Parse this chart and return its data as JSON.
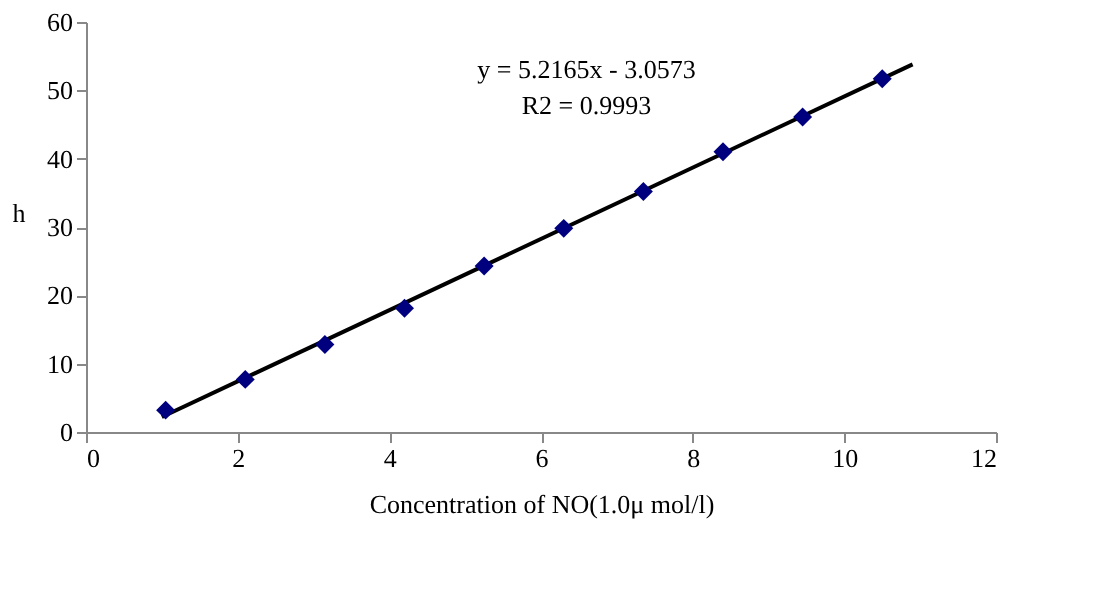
{
  "chart_data": {
    "type": "scatter",
    "xlabel": "Concentration of NO(1.0μ mol/l)",
    "ylabel": "h",
    "xlim": [
      0,
      12
    ],
    "xticks": [
      0,
      2,
      4,
      6,
      8,
      10,
      12
    ],
    "ylim": [
      0,
      60
    ],
    "yticks": [
      0,
      10,
      20,
      30,
      40,
      50,
      60
    ],
    "grid": false,
    "marker": "diamond",
    "annotations": [
      "y = 5.2165x - 3.0573",
      "R2 = 0.9993"
    ],
    "series": [
      {
        "type": "line",
        "color": "#000000",
        "x": [
          1.0,
          10.9
        ],
        "values": [
          2.2,
          53.8
        ],
        "marker": "none",
        "line_style": "solid"
      },
      {
        "color": "#00007f",
        "x": [
          1.05,
          2.1,
          3.15,
          4.2,
          5.25,
          6.3,
          7.35,
          8.4,
          9.45,
          10.5
        ],
        "values": [
          3.2,
          7.7,
          12.8,
          18.1,
          24.3,
          29.8,
          35.2,
          41.0,
          46.1,
          51.7
        ]
      }
    ]
  }
}
